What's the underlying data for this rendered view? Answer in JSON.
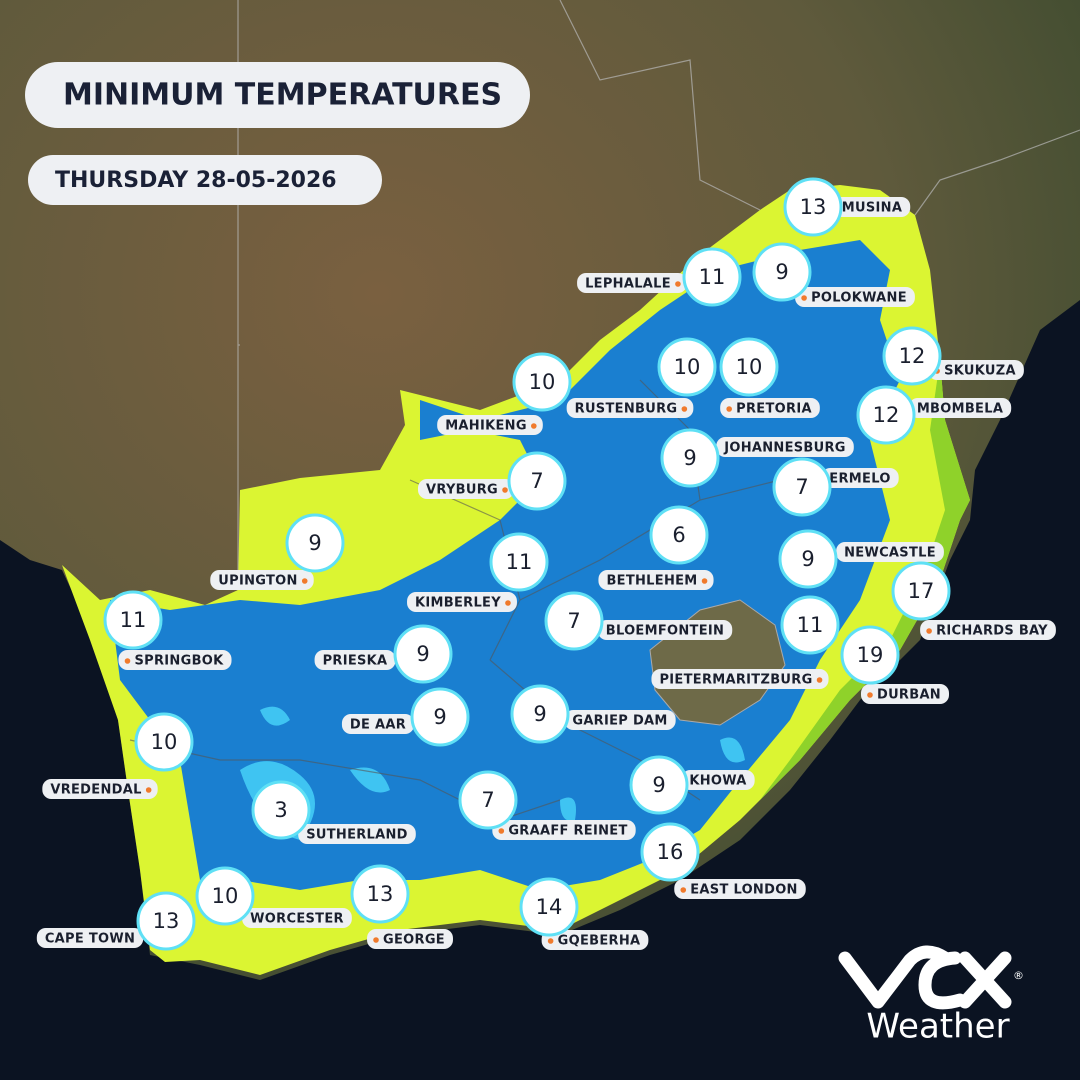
{
  "header": {
    "title": "MINIMUM TEMPERATURES",
    "date": "THURSDAY 28-05-2026"
  },
  "cities": [
    {
      "name": "MUSINA",
      "min_temp": 13
    },
    {
      "name": "LEPHALALE",
      "min_temp": 11
    },
    {
      "name": "POLOKWANE",
      "min_temp": 9
    },
    {
      "name": "SKUKUZA",
      "min_temp": 12
    },
    {
      "name": "MAHIKENG",
      "min_temp": 10
    },
    {
      "name": "RUSTENBURG",
      "min_temp": 10
    },
    {
      "name": "PRETORIA",
      "min_temp": 10
    },
    {
      "name": "MBOMBELA",
      "min_temp": 12
    },
    {
      "name": "JOHANNESBURG",
      "min_temp": 9
    },
    {
      "name": "VRYBURG",
      "min_temp": 7
    },
    {
      "name": "ERMELO",
      "min_temp": 7
    },
    {
      "name": "UPINGTON",
      "min_temp": 9
    },
    {
      "name": "BETHLEHEM",
      "min_temp": 6
    },
    {
      "name": "NEWCASTLE",
      "min_temp": 9
    },
    {
      "name": "KIMBERLEY",
      "min_temp": 11
    },
    {
      "name": "RICHARDS BAY",
      "min_temp": 17
    },
    {
      "name": "SPRINGBOK",
      "min_temp": 11
    },
    {
      "name": "BLOEMFONTEIN",
      "min_temp": 7
    },
    {
      "name": "PIETERMARITZBURG",
      "min_temp": 11
    },
    {
      "name": "PRIESKA",
      "min_temp": 9
    },
    {
      "name": "DURBAN",
      "min_temp": 19
    },
    {
      "name": "DE AAR",
      "min_temp": 9
    },
    {
      "name": "GARIEP DAM",
      "min_temp": 9
    },
    {
      "name": "VREDENDAL",
      "min_temp": 10
    },
    {
      "name": "KHOWA",
      "min_temp": 9
    },
    {
      "name": "SUTHERLAND",
      "min_temp": 3
    },
    {
      "name": "GRAAFF REINET",
      "min_temp": 7
    },
    {
      "name": "EAST LONDON",
      "min_temp": 16
    },
    {
      "name": "WORCESTER",
      "min_temp": 10
    },
    {
      "name": "GEORGE",
      "min_temp": 13
    },
    {
      "name": "GQEBERHA",
      "min_temp": 14
    },
    {
      "name": "CAPE TOWN",
      "min_temp": 13
    }
  ],
  "logo": {
    "text": "Weather"
  }
}
